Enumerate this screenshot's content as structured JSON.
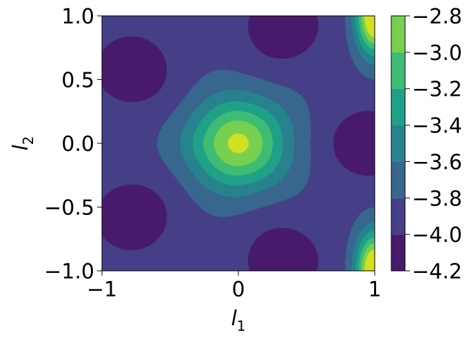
{
  "chart_data": {
    "type": "contourf",
    "xlabel": "l",
    "xlabel_sub": "1",
    "ylabel": "l",
    "ylabel_sub": "2",
    "xlim": [
      -1.0,
      1.0
    ],
    "ylim": [
      -1.0,
      1.0
    ],
    "x_ticks": [
      -1,
      0,
      1
    ],
    "x_tick_labels": [
      "−1",
      "0",
      "1"
    ],
    "y_ticks": [
      -1.0,
      -0.5,
      0.0,
      0.5,
      1.0
    ],
    "y_tick_labels": [
      "−1.0",
      "−0.5",
      "0.0",
      "0.5",
      "1.0"
    ],
    "colorbar": {
      "levels": [
        -4.2,
        -4.0,
        -3.8,
        -3.6,
        -3.4,
        -3.2,
        -3.0,
        -2.8
      ],
      "tick_labels": [
        "−4.2",
        "−4.0",
        "−3.8",
        "−3.6",
        "−3.4",
        "−3.2",
        "−3.0",
        "−2.8"
      ],
      "colors": [
        "#481a6c",
        "#443f86",
        "#37678d",
        "#26838e",
        "#1fa187",
        "#3ebc74",
        "#77d050",
        "#d3e021"
      ]
    },
    "features": {
      "center_max_value": -2.8,
      "center_location": [
        0.0,
        0.0
      ],
      "min_value": -4.2,
      "min_locations": [
        [
          0.33,
          0.92
        ],
        [
          0.33,
          -0.92
        ],
        [
          -0.78,
          0.58
        ],
        [
          -0.78,
          -0.58
        ],
        [
          0.95,
          0.0
        ]
      ],
      "corner_max_locations": [
        [
          1.0,
          1.0
        ],
        [
          1.0,
          -1.0
        ]
      ],
      "symmetry": "five-fold about origin"
    }
  }
}
